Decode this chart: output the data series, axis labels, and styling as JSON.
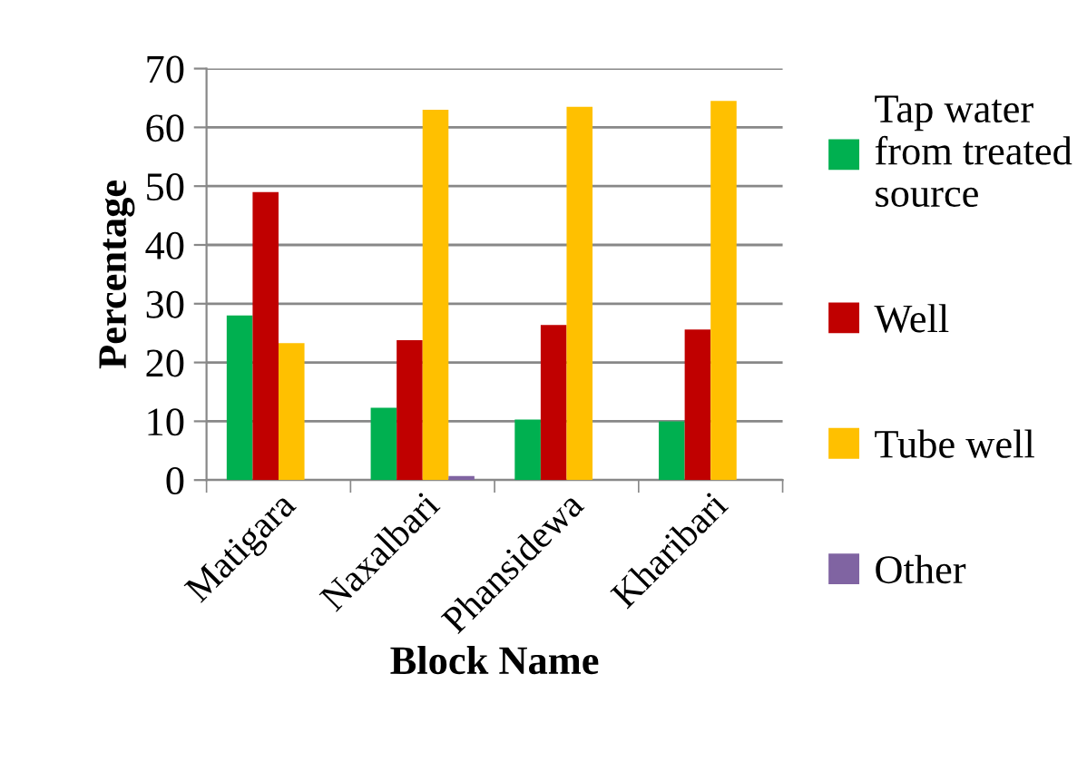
{
  "chart_data": {
    "type": "bar",
    "xlabel": "Block Name",
    "ylabel": "Percentage",
    "categories": [
      "Matigara",
      "Naxalbari",
      "Phansidewa",
      "Kharibari"
    ],
    "series": [
      {
        "name": "Tap water from treated source",
        "color": "#00b050",
        "values": [
          28,
          12.3,
          10.3,
          10
        ]
      },
      {
        "name": "Well",
        "color": "#c00000",
        "values": [
          49,
          23.8,
          26.4,
          25.6
        ]
      },
      {
        "name": "Tube well",
        "color": "#ffc000",
        "values": [
          23.3,
          63,
          63.5,
          64.5
        ]
      },
      {
        "name": "Other",
        "color": "#8064a2",
        "values": [
          0,
          0.7,
          0,
          0
        ]
      }
    ],
    "ylim": [
      0,
      70
    ],
    "yticks": [
      0,
      10,
      20,
      30,
      40,
      50,
      60,
      70
    ],
    "grid": "y",
    "legend": "right"
  }
}
